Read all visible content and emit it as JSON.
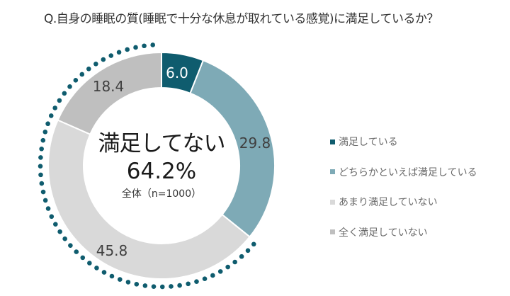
{
  "title": "Q.自身の睡眠の質(睡眠で十分な休息が取れている感覚)に満足しているか？",
  "center": {
    "main": "満足してない",
    "percent": "64.2%",
    "sample": "全体（n=1000）"
  },
  "legend": [
    {
      "label": "満足している",
      "color": "#0f5c6e"
    },
    {
      "label": "どちらかといえば満足している",
      "color": "#7eaab6"
    },
    {
      "label": "あまり満足していない",
      "color": "#d9d9d9"
    },
    {
      "label": "全く満足していない",
      "color": "#bfbfbf"
    }
  ],
  "segment_labels": [
    "6.0",
    "29.8",
    "45.8",
    "18.4"
  ],
  "highlight_color": "#0f5c6e",
  "chart_data": {
    "type": "pie",
    "subtype": "donut",
    "title": "Q.自身の睡眠の質(睡眠で十分な休息が取れている感覚)に満足しているか？",
    "categories": [
      "満足している",
      "どちらかといえば満足している",
      "あまり満足していない",
      "全く満足していない"
    ],
    "values": [
      6.0,
      29.8,
      45.8,
      18.4
    ],
    "colors": [
      "#0f5c6e",
      "#7eaab6",
      "#d9d9d9",
      "#bfbfbf"
    ],
    "unit": "%",
    "center_annotation": "満足してない 64.2%",
    "sample_size": "全体（n=1000）",
    "highlight": {
      "label": "満足してない",
      "value": 64.2,
      "style": "dotted arc",
      "covers": [
        "あまり満足していない",
        "全く満足していない"
      ]
    },
    "legend_position": "right",
    "start_angle": "12 o'clock, clockwise"
  }
}
